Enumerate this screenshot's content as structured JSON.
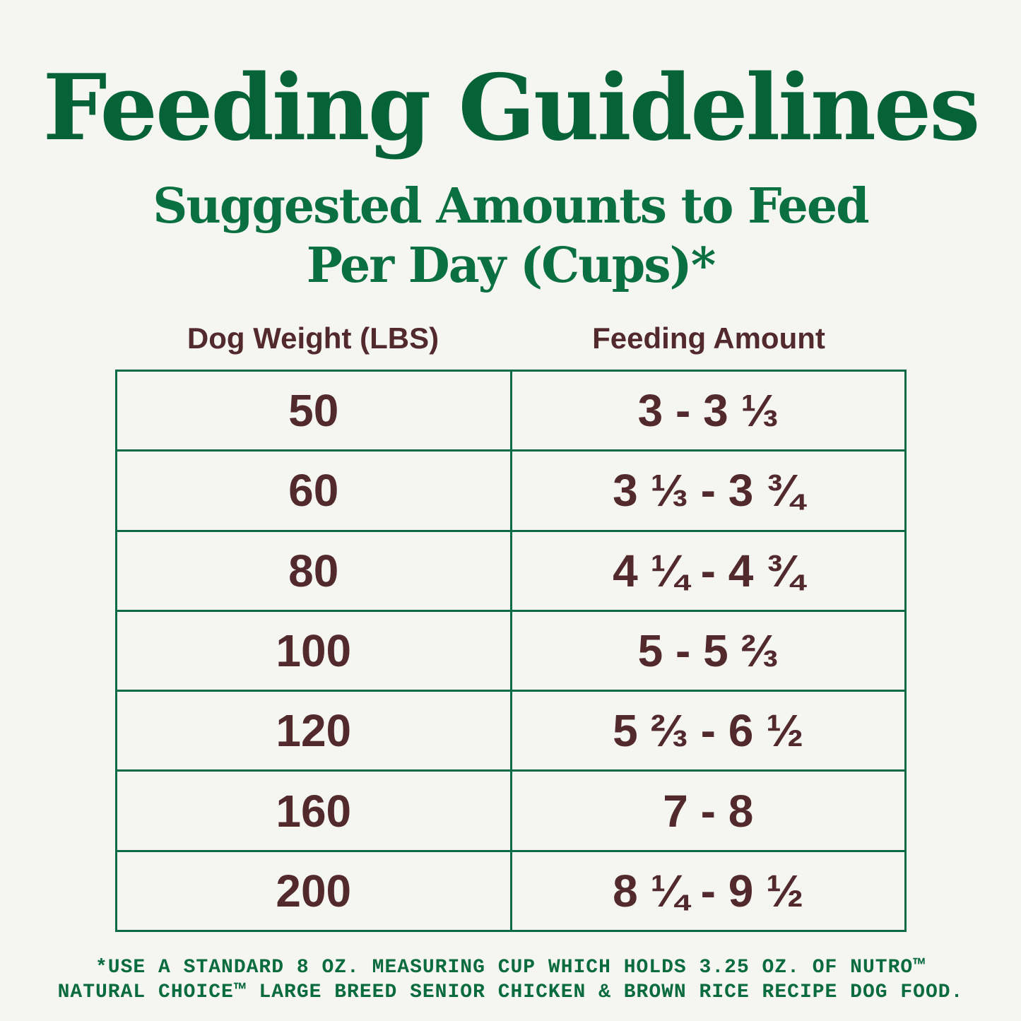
{
  "title": "Feeding Guidelines",
  "subtitle_line1": "Suggested Amounts to Feed",
  "subtitle_line2": "Per Day (Cups)*",
  "columns": [
    "Dog Weight (LBS)",
    "Feeding Amount"
  ],
  "rows": [
    {
      "weight": "50",
      "amount": "3 - 3 ⅓"
    },
    {
      "weight": "60",
      "amount": "3 ⅓ - 3 ¾"
    },
    {
      "weight": "80",
      "amount": "4 ¼ - 4 ¾"
    },
    {
      "weight": "100",
      "amount": "5 - 5 ⅔"
    },
    {
      "weight": "120",
      "amount": "5 ⅔ - 6 ½"
    },
    {
      "weight": "160",
      "amount": "7 - 8"
    },
    {
      "weight": "200",
      "amount": "8 ¼ - 9 ½"
    }
  ],
  "footnote_line1": "*USE A STANDARD 8 OZ. MEASURING CUP WHICH HOLDS 3.25 OZ. OF NUTRO™",
  "footnote_line2": "NATURAL CHOICE™ LARGE BREED SENIOR CHICKEN & BROWN RICE RECIPE DOG FOOD.",
  "colors": {
    "background": "#f5f6f1",
    "green": "#066337",
    "brown": "#522a2e"
  }
}
